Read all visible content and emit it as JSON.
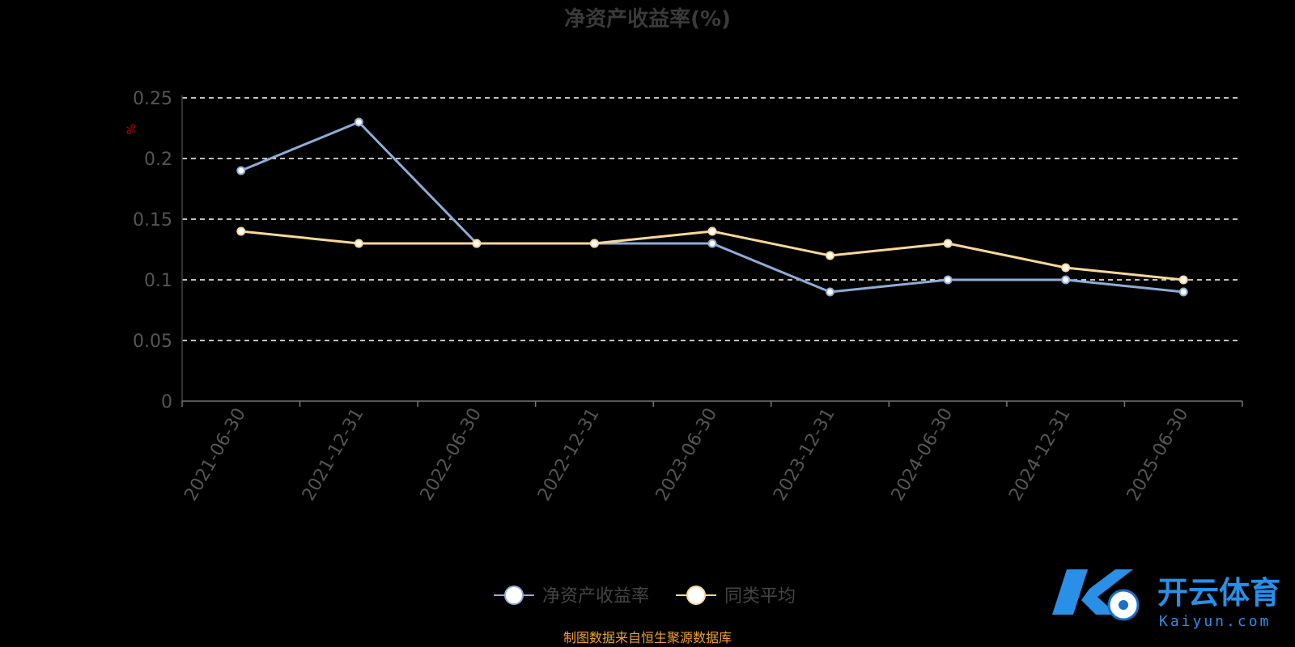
{
  "chart_data": {
    "type": "line",
    "title": "净资产收益率(%)",
    "ylabel": "%",
    "ylim": [
      0,
      0.25
    ],
    "yticks": [
      "0",
      "0.05",
      "0.1",
      "0.15",
      "0.2",
      "0.25"
    ],
    "categories": [
      "2021-06-30",
      "2021-12-31",
      "2022-06-30",
      "2022-12-31",
      "2023-06-30",
      "2023-12-31",
      "2024-06-30",
      "2024-12-31",
      "2025-06-30"
    ],
    "series": [
      {
        "name": "净资产收益率",
        "color": "#8eacd6",
        "values": [
          0.19,
          0.23,
          0.13,
          0.13,
          0.13,
          0.09,
          0.1,
          0.1,
          0.09
        ]
      },
      {
        "name": "同类平均",
        "color": "#f9d89c",
        "values": [
          0.14,
          0.13,
          0.13,
          0.13,
          0.14,
          0.12,
          0.13,
          0.11,
          0.1
        ]
      }
    ],
    "grid": "dashed-horizontal",
    "legend_position": "bottom-center"
  },
  "source": "制图数据来自恒生聚源数据库",
  "watermark": {
    "cn": "开云体育",
    "en": "Kaiyun.com"
  },
  "colors": {
    "background": "#000000",
    "title": "#3a3a3a",
    "tick": "#555555",
    "ylabel": "#cc0000",
    "grid": "#ffffff",
    "source": "#f0a030",
    "logo": "#2a8fe6"
  }
}
